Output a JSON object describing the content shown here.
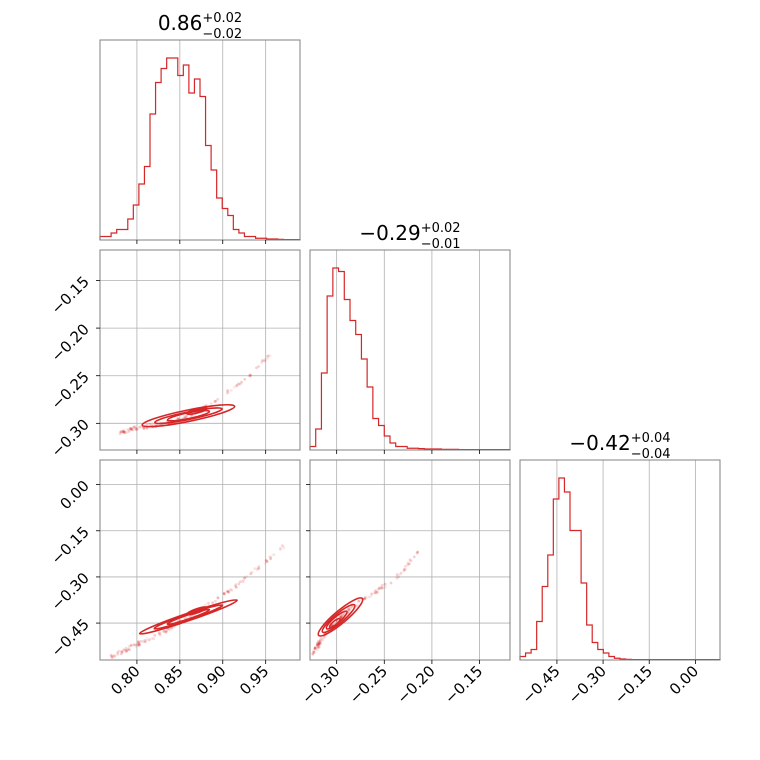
{
  "chart_data": {
    "type": "corner",
    "color": "#d62728",
    "grid": true,
    "parameters": [
      {
        "title": {
          "median": "0.86",
          "plus": "+0.02",
          "minus": "−0.02"
        },
        "range": [
          0.757,
          0.99
        ],
        "ticks": [
          {
            "value": 0.8,
            "label": "0.80"
          },
          {
            "value": 0.85,
            "label": "0.85"
          },
          {
            "value": 0.9,
            "label": "0.90"
          },
          {
            "value": 0.95,
            "label": "0.95"
          }
        ],
        "hist_max": 0.052,
        "hist_counts": [
          0.001,
          0.001,
          0.002,
          0.003,
          0.003,
          0.006,
          0.01,
          0.016,
          0.021,
          0.036,
          0.045,
          0.049,
          0.052,
          0.052,
          0.047,
          0.05,
          0.042,
          0.046,
          0.041,
          0.027,
          0.02,
          0.012,
          0.009,
          0.007,
          0.003,
          0.002,
          0.001,
          0.001,
          0.0005,
          0.0005,
          0.0003,
          0.0003,
          0.0002,
          0.0001,
          0.0001,
          0.0001
        ]
      },
      {
        "title": {
          "median": "−0.29",
          "plus": "+0.02",
          "minus": "−0.01"
        },
        "range": [
          -0.328,
          -0.118
        ],
        "ticks": [
          {
            "value": -0.3,
            "label": "−0.30"
          },
          {
            "value": -0.25,
            "label": "−0.25"
          },
          {
            "value": -0.2,
            "label": "−0.20"
          },
          {
            "value": -0.15,
            "label": "−0.15"
          }
        ],
        "hist_max": 0.052,
        "hist_counts": [
          0.001,
          0.006,
          0.022,
          0.044,
          0.052,
          0.051,
          0.043,
          0.037,
          0.033,
          0.026,
          0.018,
          0.009,
          0.007,
          0.004,
          0.002,
          0.001,
          0.001,
          0.0005,
          0.0005,
          0.0004,
          0.0003,
          0.0003,
          0.0003,
          0.0002,
          0.0002,
          0.0002,
          0.0001,
          0.0001,
          0.0001,
          0.0001,
          0.0001,
          0.0001,
          0.0001,
          0.0001,
          0.0001
        ]
      },
      {
        "title": {
          "median": "−0.42",
          "plus": "+0.04",
          "minus": "−0.04"
        },
        "range": [
          -0.57,
          0.08
        ],
        "ticks": [
          {
            "value": -0.45,
            "label": "−0.45"
          },
          {
            "value": -0.3,
            "label": "−0.30"
          },
          {
            "value": -0.15,
            "label": "−0.15"
          },
          {
            "value": 0.0,
            "label": "0.00"
          }
        ],
        "hist_max": 0.052,
        "hist_counts": [
          0.001,
          0.002,
          0.003,
          0.011,
          0.021,
          0.03,
          0.046,
          0.052,
          0.048,
          0.037,
          0.037,
          0.022,
          0.01,
          0.005,
          0.003,
          0.002,
          0.001,
          0.0005,
          0.0003,
          0.0002,
          0.0001,
          0.0001,
          0.0001,
          0.0001,
          0.0001,
          0.0001,
          0.0001,
          0.0001,
          0.0001,
          0.0001,
          0.0001,
          0.0001,
          0.0001,
          0.0001,
          0.0001,
          0.0001
        ]
      }
    ],
    "correlations": [
      {
        "x_param": 0,
        "y_param": 1,
        "curve": [
          [
            0.78,
            -0.31
          ],
          [
            0.8,
            -0.305
          ],
          [
            0.82,
            -0.302
          ],
          [
            0.84,
            -0.299
          ],
          [
            0.86,
            -0.292
          ],
          [
            0.88,
            -0.283
          ],
          [
            0.9,
            -0.27
          ],
          [
            0.92,
            -0.258
          ],
          [
            0.94,
            -0.242
          ],
          [
            0.96,
            -0.222
          ]
        ],
        "contours": [
          {
            "cx": 0.86,
            "cy": -0.292,
            "rx": 0.055,
            "ry": 0.006,
            "tilt": -0.2
          },
          {
            "cx": 0.86,
            "cy": -0.292,
            "rx": 0.04,
            "ry": 0.004,
            "tilt": -0.2
          },
          {
            "cx": 0.86,
            "cy": -0.292,
            "rx": 0.025,
            "ry": 0.003,
            "tilt": -0.2
          },
          {
            "cx": 0.87,
            "cy": -0.287,
            "rx": 0.012,
            "ry": 0.002,
            "tilt": -0.25
          }
        ]
      },
      {
        "x_param": 0,
        "y_param": 2,
        "curve": [
          [
            0.77,
            -0.56
          ],
          [
            0.8,
            -0.52
          ],
          [
            0.83,
            -0.48
          ],
          [
            0.86,
            -0.43
          ],
          [
            0.89,
            -0.38
          ],
          [
            0.92,
            -0.32
          ],
          [
            0.95,
            -0.25
          ],
          [
            0.97,
            -0.2
          ]
        ],
        "contours": [
          {
            "cx": 0.86,
            "cy": -0.43,
            "rx": 0.06,
            "ry": 0.012,
            "tilt": -0.33
          },
          {
            "cx": 0.86,
            "cy": -0.43,
            "rx": 0.042,
            "ry": 0.009,
            "tilt": -0.33
          },
          {
            "cx": 0.86,
            "cy": -0.43,
            "rx": 0.026,
            "ry": 0.006,
            "tilt": -0.33
          },
          {
            "cx": 0.87,
            "cy": -0.41,
            "rx": 0.012,
            "ry": 0.004,
            "tilt": -0.33
          }
        ]
      },
      {
        "x_param": 1,
        "y_param": 2,
        "curve": [
          [
            -0.325,
            -0.55
          ],
          [
            -0.315,
            -0.5
          ],
          [
            -0.305,
            -0.46
          ],
          [
            -0.295,
            -0.43
          ],
          [
            -0.285,
            -0.4
          ],
          [
            -0.27,
            -0.37
          ],
          [
            -0.25,
            -0.33
          ],
          [
            -0.23,
            -0.28
          ],
          [
            -0.215,
            -0.22
          ]
        ],
        "contours": [
          {
            "cx": -0.296,
            "cy": -0.43,
            "rx": 0.03,
            "ry": 0.02,
            "tilt": -0.7
          },
          {
            "cx": -0.298,
            "cy": -0.435,
            "rx": 0.022,
            "ry": 0.015,
            "tilt": -0.7
          },
          {
            "cx": -0.3,
            "cy": -0.44,
            "rx": 0.014,
            "ry": 0.01,
            "tilt": -0.7
          },
          {
            "cx": -0.302,
            "cy": -0.45,
            "rx": 0.007,
            "ry": 0.006,
            "tilt": -0.7
          }
        ]
      }
    ]
  }
}
